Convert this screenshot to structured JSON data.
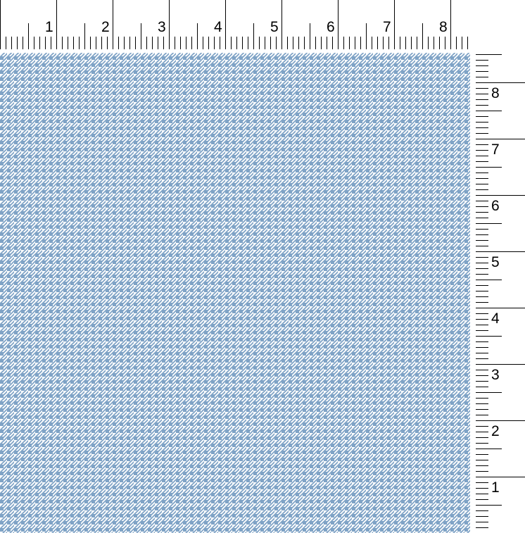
{
  "rulers": {
    "top_labels": [
      "1",
      "2",
      "3",
      "4",
      "5",
      "6",
      "7",
      "8"
    ],
    "side_labels": [
      "1",
      "2",
      "3",
      "4",
      "5",
      "6",
      "7",
      "8"
    ],
    "unit": "inch"
  },
  "fabric": {
    "pattern": "houndstooth",
    "color": "#7fa3c6",
    "background": "#ffffff"
  }
}
